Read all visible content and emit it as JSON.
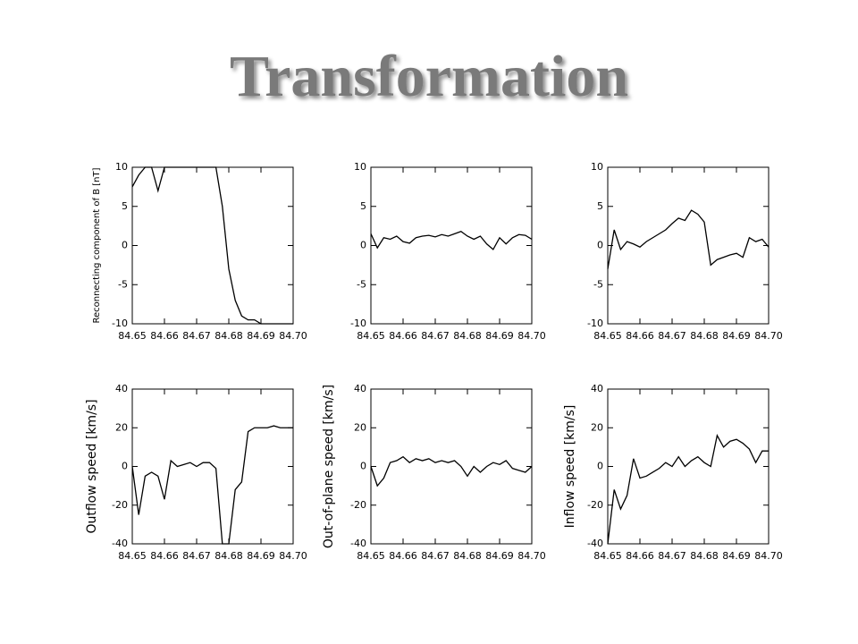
{
  "slide_title": "Transformation",
  "chart_data": [
    {
      "type": "line",
      "ylabel": "Reconnecting component of B [nT]",
      "color": "#000000",
      "x": [
        84.65,
        84.652,
        84.654,
        84.656,
        84.658,
        84.66,
        84.662,
        84.664,
        84.666,
        84.668,
        84.67,
        84.672,
        84.674,
        84.676,
        84.678,
        84.68,
        84.682,
        84.684,
        84.686,
        84.688,
        84.69,
        84.692,
        84.694,
        84.696,
        84.698,
        84.7
      ],
      "values": [
        7.5,
        9,
        10,
        10,
        7,
        10,
        10,
        10,
        10,
        10,
        10,
        10,
        10,
        10,
        5,
        -3,
        -7,
        -9,
        -9.5,
        -9.5,
        -10,
        -10,
        -10,
        -10,
        -10,
        -10
      ],
      "xlim": [
        84.65,
        84.7
      ],
      "xticks": [
        84.65,
        84.66,
        84.67,
        84.68,
        84.69,
        {
          "value": 84.7,
          "label": "84.70"
        }
      ],
      "ylim": [
        -10,
        10
      ],
      "yticks": [
        -10,
        -5,
        0,
        5,
        10
      ]
    },
    {
      "type": "line",
      "color": "#000000",
      "x": [
        84.65,
        84.652,
        84.654,
        84.656,
        84.658,
        84.66,
        84.662,
        84.664,
        84.666,
        84.668,
        84.67,
        84.672,
        84.674,
        84.676,
        84.678,
        84.68,
        84.682,
        84.684,
        84.686,
        84.688,
        84.69,
        84.692,
        84.694,
        84.696,
        84.698,
        84.7
      ],
      "values": [
        1.5,
        -0.3,
        1,
        0.8,
        1.2,
        0.5,
        0.3,
        1,
        1.2,
        1.3,
        1.1,
        1.4,
        1.2,
        1.5,
        1.8,
        1.2,
        0.8,
        1.2,
        0.2,
        -0.5,
        1,
        0.2,
        1,
        1.4,
        1.3,
        0.8
      ],
      "xlim": [
        84.65,
        84.7
      ],
      "xticks": [
        84.65,
        84.66,
        84.67,
        84.68,
        84.69,
        {
          "value": 84.7,
          "label": "84.70"
        }
      ],
      "ylim": [
        -10,
        10
      ],
      "yticks": [
        -10,
        -5,
        0,
        5,
        10
      ]
    },
    {
      "type": "line",
      "color": "#000000",
      "x": [
        84.65,
        84.652,
        84.654,
        84.656,
        84.658,
        84.66,
        84.662,
        84.664,
        84.666,
        84.668,
        84.67,
        84.672,
        84.674,
        84.676,
        84.678,
        84.68,
        84.682,
        84.684,
        84.686,
        84.688,
        84.69,
        84.692,
        84.694,
        84.696,
        84.698,
        84.7
      ],
      "values": [
        -3,
        2,
        -0.5,
        0.5,
        0.2,
        -0.2,
        0.5,
        1,
        1.5,
        2,
        2.8,
        3.5,
        3.2,
        4.5,
        4,
        3,
        -2.5,
        -1.8,
        -1.5,
        -1.2,
        -1,
        -1.5,
        1,
        0.5,
        0.8,
        -0.2
      ],
      "xlim": [
        84.65,
        84.7
      ],
      "xticks": [
        84.65,
        84.66,
        84.67,
        84.68,
        84.69,
        {
          "value": 84.7,
          "label": "84.70"
        }
      ],
      "ylim": [
        -10,
        10
      ],
      "yticks": [
        -10,
        -5,
        0,
        5,
        10
      ]
    },
    {
      "type": "line",
      "ylabel": "Outflow speed [km/s]",
      "color": "#000000",
      "x": [
        84.65,
        84.652,
        84.654,
        84.656,
        84.658,
        84.66,
        84.662,
        84.664,
        84.666,
        84.668,
        84.67,
        84.672,
        84.674,
        84.676,
        84.678,
        84.68,
        84.682,
        84.684,
        84.686,
        84.688,
        84.69,
        84.692,
        84.694,
        84.696,
        84.698,
        84.7
      ],
      "values": [
        0,
        -25,
        -5,
        -3,
        -5,
        -17,
        3,
        0,
        1,
        2,
        0,
        2,
        2,
        -1,
        -40,
        -40,
        -12,
        -8,
        18,
        20,
        20,
        20,
        21,
        20,
        20,
        20
      ],
      "xlim": [
        84.65,
        84.7
      ],
      "xticks": [
        84.65,
        84.66,
        84.67,
        84.68,
        84.69,
        {
          "value": 84.7,
          "label": "84.70"
        }
      ],
      "ylim": [
        -40,
        40
      ],
      "yticks": [
        -40,
        -20,
        0,
        20,
        40
      ]
    },
    {
      "type": "line",
      "ylabel": "Out-of-plane speed [km/s]",
      "color": "#000000",
      "x": [
        84.65,
        84.652,
        84.654,
        84.656,
        84.658,
        84.66,
        84.662,
        84.664,
        84.666,
        84.668,
        84.67,
        84.672,
        84.674,
        84.676,
        84.678,
        84.68,
        84.682,
        84.684,
        84.686,
        84.688,
        84.69,
        84.692,
        84.694,
        84.696,
        84.698,
        84.7
      ],
      "values": [
        0,
        -10,
        -6,
        2,
        3,
        5,
        2,
        4,
        3,
        4,
        2,
        3,
        2,
        3,
        0,
        -5,
        0,
        -3,
        0,
        2,
        1,
        3,
        -1,
        -2,
        -3,
        0
      ],
      "xlim": [
        84.65,
        84.7
      ],
      "xticks": [
        84.65,
        84.66,
        84.67,
        84.68,
        84.69,
        {
          "value": 84.7,
          "label": "84.70"
        }
      ],
      "ylim": [
        -40,
        40
      ],
      "yticks": [
        -40,
        -20,
        0,
        20,
        40
      ]
    },
    {
      "type": "line",
      "ylabel": "Inflow speed [km/s]",
      "color": "#000000",
      "x": [
        84.65,
        84.652,
        84.654,
        84.656,
        84.658,
        84.66,
        84.662,
        84.664,
        84.666,
        84.668,
        84.67,
        84.672,
        84.674,
        84.676,
        84.678,
        84.68,
        84.682,
        84.684,
        84.686,
        84.688,
        84.69,
        84.692,
        84.694,
        84.696,
        84.698,
        84.7
      ],
      "values": [
        -40,
        -12,
        -22,
        -15,
        4,
        -6,
        -5,
        -3,
        -1,
        2,
        0,
        5,
        0,
        3,
        5,
        2,
        0,
        16,
        10,
        13,
        14,
        12,
        9,
        2,
        8,
        8
      ],
      "xlim": [
        84.65,
        84.7
      ],
      "xticks": [
        84.65,
        84.66,
        84.67,
        84.68,
        84.69,
        {
          "value": 84.7,
          "label": "84.70"
        }
      ],
      "ylim": [
        -40,
        40
      ],
      "yticks": [
        -40,
        -20,
        0,
        20,
        40
      ]
    }
  ]
}
